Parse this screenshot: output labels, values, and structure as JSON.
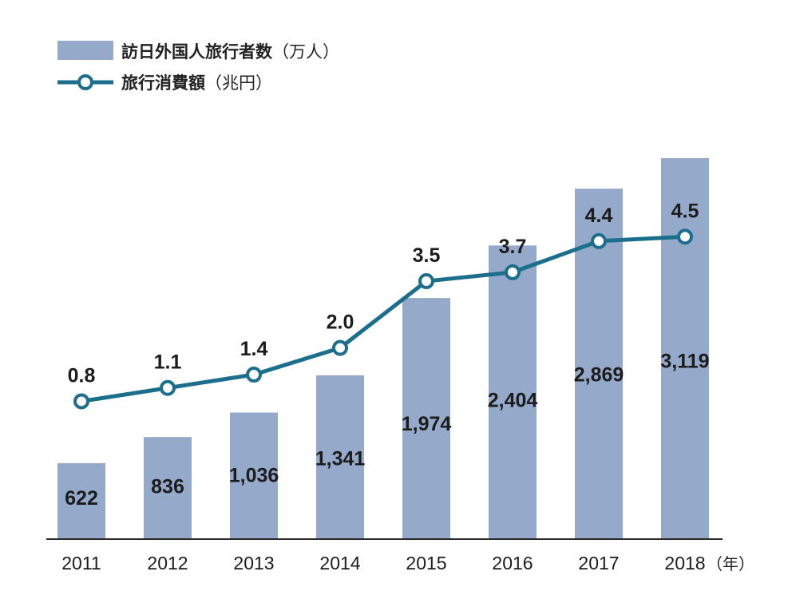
{
  "chart_data": {
    "type": "bar",
    "categories": [
      "2011",
      "2012",
      "2013",
      "2014",
      "2015",
      "2016",
      "2017",
      "2018"
    ],
    "x_unit": "（年）",
    "series": [
      {
        "name": "訪日外国人旅行者数",
        "unit": "（万人）",
        "type": "bar",
        "values": [
          622,
          836,
          1036,
          1341,
          1974,
          2404,
          2869,
          3119
        ],
        "labels": [
          "622",
          "836",
          "1,036",
          "1,341",
          "1,974",
          "2,404",
          "2,869",
          "3,119"
        ],
        "color": "#95a9cb"
      },
      {
        "name": "旅行消費額",
        "unit": "（兆円）",
        "type": "line",
        "values": [
          0.8,
          1.1,
          1.4,
          2.0,
          3.5,
          3.7,
          4.4,
          4.5
        ],
        "labels": [
          "0.8",
          "1.1",
          "1.4",
          "2.0",
          "3.5",
          "3.7",
          "4.4",
          "4.5"
        ],
        "color": "#1b6f8c"
      }
    ],
    "legend_position": "top-left",
    "grid": false
  }
}
